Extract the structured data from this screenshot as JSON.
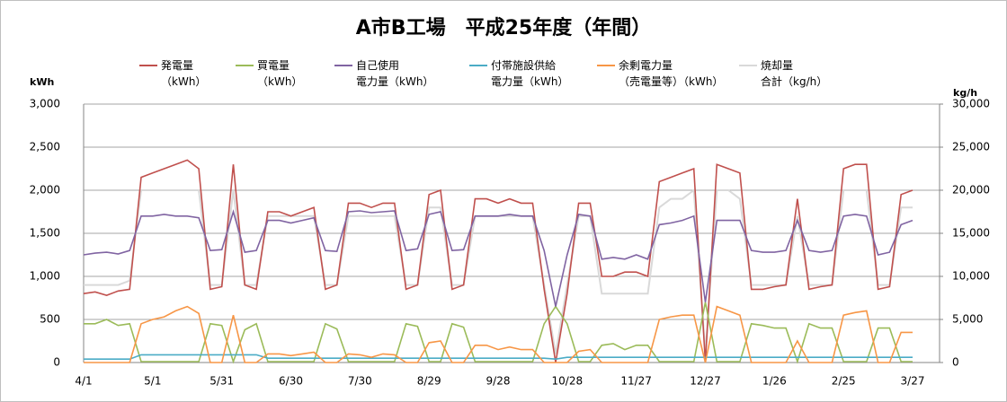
{
  "chart_data": {
    "type": "line",
    "title": "A市B工場　平成25年度（年間）",
    "ylabel": "kWh",
    "y2label": "kg/h",
    "categories": [
      "4/1",
      null,
      null,
      null,
      null,
      null,
      "5/1",
      null,
      null,
      null,
      null,
      null,
      "5/31",
      null,
      null,
      null,
      null,
      null,
      "6/30",
      null,
      null,
      null,
      null,
      null,
      "7/30",
      null,
      null,
      null,
      null,
      null,
      "8/29",
      null,
      null,
      null,
      null,
      null,
      "9/28",
      null,
      null,
      null,
      null,
      null,
      "10/28",
      null,
      null,
      null,
      null,
      null,
      "11/27",
      null,
      null,
      null,
      null,
      null,
      "12/27",
      null,
      null,
      null,
      null,
      null,
      "1/26",
      null,
      null,
      null,
      null,
      null,
      "2/25",
      null,
      null,
      null,
      null,
      null,
      "3/27"
    ],
    "ylim": [
      0,
      3000
    ],
    "yticks": [
      0,
      500,
      {
        "value": 1000,
        "label": "1,000"
      },
      {
        "value": 1500,
        "label": "1,500"
      },
      {
        "value": 2000,
        "label": "2,000"
      },
      {
        "value": 2500,
        "label": "2,500"
      },
      {
        "value": 3000,
        "label": "3,000"
      }
    ],
    "y2lim": [
      0,
      30000
    ],
    "y2ticks": [
      0,
      {
        "value": 5000,
        "label": "5,000"
      },
      {
        "value": 10000,
        "label": "10,000"
      },
      {
        "value": 15000,
        "label": "15,000"
      },
      {
        "value": 20000,
        "label": "20,000"
      },
      {
        "value": 25000,
        "label": "25,000"
      },
      {
        "value": 30000,
        "label": "30,000"
      }
    ],
    "grid": true,
    "series": [
      {
        "name": "発電量\n（kWh）",
        "color": "#c0504d",
        "values": [
          800,
          820,
          780,
          830,
          850,
          2150,
          2200,
          2250,
          2300,
          2350,
          2250,
          850,
          880,
          2300,
          900,
          850,
          1750,
          1750,
          1700,
          1750,
          1800,
          850,
          900,
          1850,
          1850,
          1800,
          1850,
          1850,
          850,
          900,
          1950,
          2000,
          850,
          900,
          1900,
          1900,
          1850,
          1900,
          1850,
          1850,
          850,
          0,
          800,
          1850,
          1850,
          1000,
          1000,
          1050,
          1050,
          1000,
          2100,
          2150,
          2200,
          2250,
          0,
          2300,
          2250,
          2200,
          850,
          850,
          880,
          900,
          1900,
          850,
          880,
          900,
          2250,
          2300,
          2300,
          850,
          880,
          1950,
          2000
        ]
      },
      {
        "name": "買電量\n（kWh）",
        "color": "#9bbb59",
        "values": [
          450,
          450,
          500,
          430,
          450,
          10,
          10,
          10,
          10,
          10,
          10,
          450,
          430,
          10,
          380,
          450,
          10,
          10,
          10,
          10,
          10,
          450,
          390,
          10,
          10,
          10,
          10,
          10,
          450,
          420,
          10,
          10,
          450,
          410,
          10,
          10,
          10,
          10,
          10,
          10,
          450,
          650,
          450,
          10,
          10,
          200,
          220,
          150,
          200,
          200,
          10,
          10,
          10,
          10,
          700,
          10,
          10,
          10,
          450,
          430,
          400,
          400,
          10,
          450,
          400,
          400,
          10,
          10,
          10,
          400,
          400,
          10,
          10
        ]
      },
      {
        "name": "自己使用\n電力量（kWh）",
        "color": "#8064a2",
        "values": [
          1250,
          1270,
          1280,
          1260,
          1300,
          1700,
          1700,
          1720,
          1700,
          1700,
          1680,
          1300,
          1310,
          1750,
          1280,
          1300,
          1650,
          1650,
          1620,
          1650,
          1680,
          1300,
          1290,
          1750,
          1760,
          1740,
          1750,
          1760,
          1300,
          1320,
          1720,
          1750,
          1300,
          1310,
          1700,
          1700,
          1700,
          1720,
          1700,
          1700,
          1300,
          650,
          1250,
          1720,
          1700,
          1200,
          1220,
          1200,
          1250,
          1200,
          1600,
          1620,
          1650,
          1700,
          700,
          1650,
          1650,
          1650,
          1300,
          1280,
          1280,
          1300,
          1650,
          1300,
          1280,
          1300,
          1700,
          1720,
          1700,
          1250,
          1280,
          1600,
          1650
        ]
      },
      {
        "name": "付帯施設供給\n電力量（kWh）",
        "color": "#4bacc6",
        "values": [
          40,
          40,
          40,
          40,
          40,
          90,
          90,
          90,
          90,
          90,
          90,
          90,
          90,
          90,
          90,
          90,
          50,
          50,
          50,
          50,
          50,
          50,
          50,
          50,
          50,
          50,
          50,
          50,
          50,
          50,
          50,
          50,
          50,
          50,
          50,
          50,
          50,
          50,
          50,
          50,
          50,
          40,
          60,
          60,
          60,
          60,
          60,
          60,
          60,
          60,
          60,
          60,
          60,
          60,
          60,
          60,
          60,
          60,
          60,
          60,
          60,
          60,
          60,
          60,
          60,
          60,
          60,
          60,
          60,
          60,
          60,
          60,
          60
        ]
      },
      {
        "name": "余剰電力量\n（売電量等）（kWh）",
        "color": "#f79646",
        "values": [
          0,
          0,
          0,
          0,
          0,
          450,
          500,
          530,
          600,
          650,
          570,
          0,
          0,
          550,
          0,
          0,
          100,
          100,
          80,
          100,
          120,
          0,
          0,
          100,
          90,
          60,
          100,
          90,
          0,
          0,
          230,
          250,
          0,
          0,
          200,
          200,
          150,
          180,
          150,
          150,
          0,
          0,
          0,
          130,
          150,
          0,
          0,
          0,
          0,
          0,
          500,
          530,
          550,
          550,
          0,
          650,
          600,
          550,
          0,
          0,
          0,
          0,
          250,
          0,
          0,
          0,
          550,
          580,
          600,
          0,
          0,
          350,
          350
        ]
      },
      {
        "name": "焼却量\n合計（kg/h）",
        "color": "#d9d9d9",
        "axis": "y2",
        "values": [
          9000,
          9000,
          9000,
          9000,
          9500,
          20000,
          20000,
          20000,
          20000,
          20000,
          20000,
          9000,
          9000,
          20000,
          9000,
          9000,
          17000,
          17000,
          17000,
          17000,
          17000,
          9000,
          9000,
          17000,
          17000,
          17000,
          17000,
          17000,
          9000,
          9000,
          18000,
          18000,
          9000,
          9000,
          17000,
          17000,
          17000,
          17000,
          17000,
          17000,
          9000,
          1000,
          9000,
          17000,
          17000,
          8000,
          8000,
          8000,
          8000,
          8000,
          18000,
          19000,
          19000,
          20000,
          1000,
          20000,
          20000,
          19000,
          9000,
          9000,
          9000,
          9000,
          17000,
          9000,
          9000,
          9000,
          20000,
          20000,
          20000,
          9000,
          9000,
          18000,
          18000
        ]
      }
    ]
  }
}
